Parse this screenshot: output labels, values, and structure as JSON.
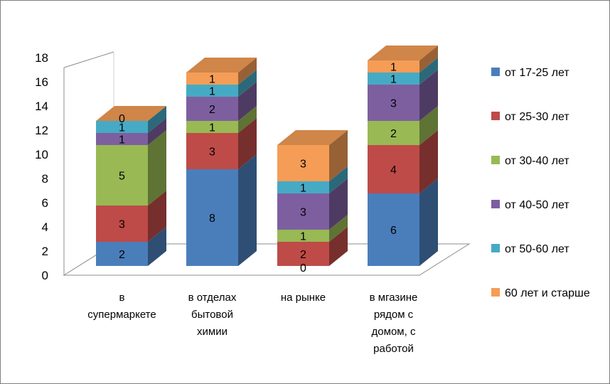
{
  "chart_data": {
    "type": "bar",
    "stacked": true,
    "three_d": true,
    "categories": [
      [
        "в",
        "супермаркете"
      ],
      [
        "в отделах",
        "бытовой",
        "химии"
      ],
      [
        "на рынке"
      ],
      [
        "в мгазине",
        "рядом с",
        "домом, с",
        "работой"
      ]
    ],
    "series": [
      {
        "name": "от 17-25 лет",
        "color": "#4a7ebb",
        "values": [
          2,
          8,
          0,
          6
        ]
      },
      {
        "name": "от 25-30 лет",
        "color": "#be4b48",
        "values": [
          3,
          3,
          2,
          4
        ]
      },
      {
        "name": "от 30-40 лет",
        "color": "#98b954",
        "values": [
          5,
          1,
          1,
          2
        ]
      },
      {
        "name": "от 40-50 лет",
        "color": "#7d5fa0",
        "values": [
          1,
          2,
          3,
          3
        ]
      },
      {
        "name": "от 50-60 лет",
        "color": "#46aac5",
        "values": [
          1,
          1,
          1,
          1
        ]
      },
      {
        "name": "60 лет и старше",
        "color": "#f59d56",
        "values": [
          0,
          1,
          3,
          1
        ]
      }
    ],
    "yticks": [
      "0",
      "2",
      "4",
      "6",
      "8",
      "10",
      "12",
      "14",
      "16",
      "18"
    ],
    "ylim": [
      0,
      18
    ],
    "legend_position": "right",
    "data_labels": true
  }
}
